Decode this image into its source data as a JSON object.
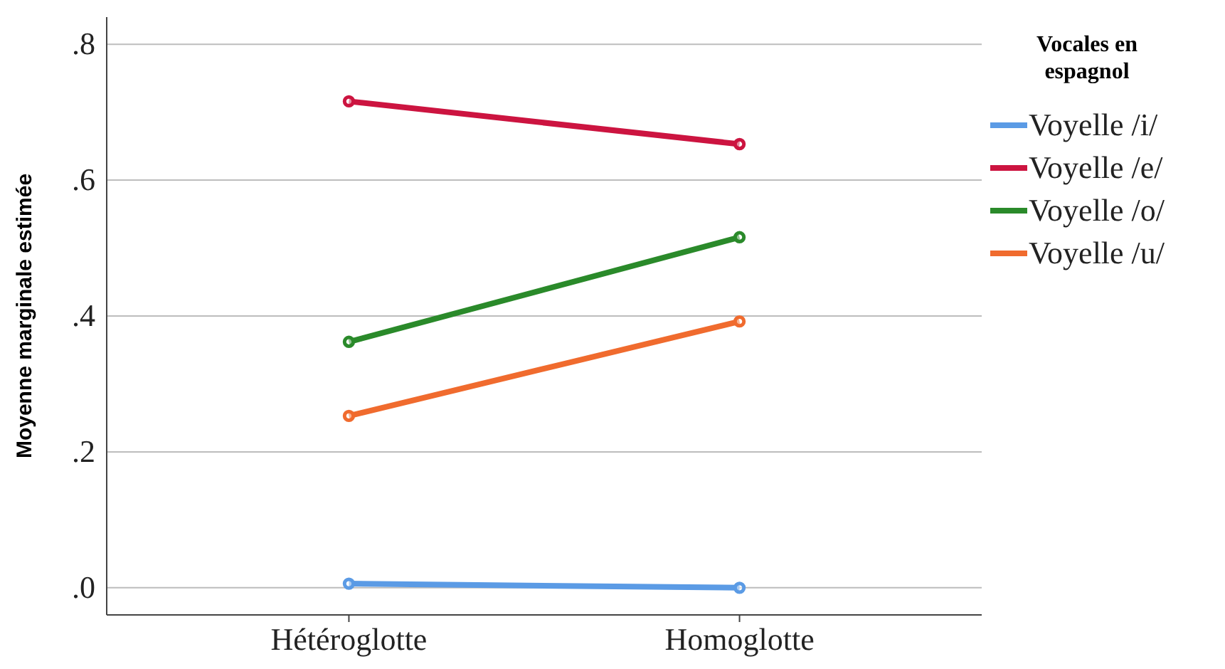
{
  "chart_data": {
    "type": "line",
    "ylabel": "Moyenne marginale estimée",
    "legend_title": "Vocales en espagnol",
    "categories": [
      "Hétéroglotte",
      "Homoglotte"
    ],
    "series": [
      {
        "name": "Voyelle /i/",
        "color": "#5b9be5",
        "values": [
          0.006,
          0.0
        ]
      },
      {
        "name": "Voyelle /e/",
        "color": "#cc1440",
        "values": [
          0.716,
          0.653
        ]
      },
      {
        "name": "Voyelle /o/",
        "color": "#2a8a2a",
        "values": [
          0.362,
          0.516
        ]
      },
      {
        "name": "Voyelle /u/",
        "color": "#f06b2e",
        "values": [
          0.253,
          0.392
        ]
      }
    ],
    "ylim": [
      -0.04,
      0.84
    ],
    "yticks": [
      {
        "value": 0,
        "label": ".0"
      },
      {
        "value": 0.2,
        "label": ".2"
      },
      {
        "value": 0.4,
        "label": ".4"
      },
      {
        "value": 0.6,
        "label": ".6"
      },
      {
        "value": 0.8,
        "label": ".8"
      }
    ],
    "grid": "y",
    "legend": "right",
    "marker": "circle",
    "line_style": "solid"
  }
}
